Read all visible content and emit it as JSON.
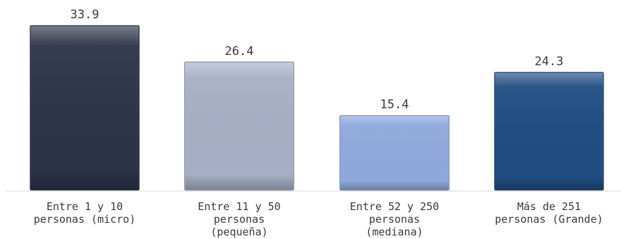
{
  "chart_data": {
    "type": "bar",
    "categories": [
      [
        "Entre 1 y 10",
        "personas (micro)"
      ],
      [
        "Entre 11 y 50",
        "personas",
        "(pequeña)"
      ],
      [
        "Entre 52 y 250",
        "personas",
        "(mediana)"
      ],
      [
        "Más de 251",
        "personas (Grande)"
      ]
    ],
    "values": [
      33.9,
      26.4,
      15.4,
      24.3
    ],
    "value_labels": [
      "33.9",
      "26.4",
      "15.4",
      "24.3"
    ],
    "colors": [
      "#2b3447",
      "#a6afc5",
      "#8fa8dc",
      "#1f4d82"
    ],
    "title": "",
    "xlabel": "",
    "ylabel": "",
    "ylim": [
      0,
      35
    ],
    "grid": false,
    "legend": "none"
  }
}
